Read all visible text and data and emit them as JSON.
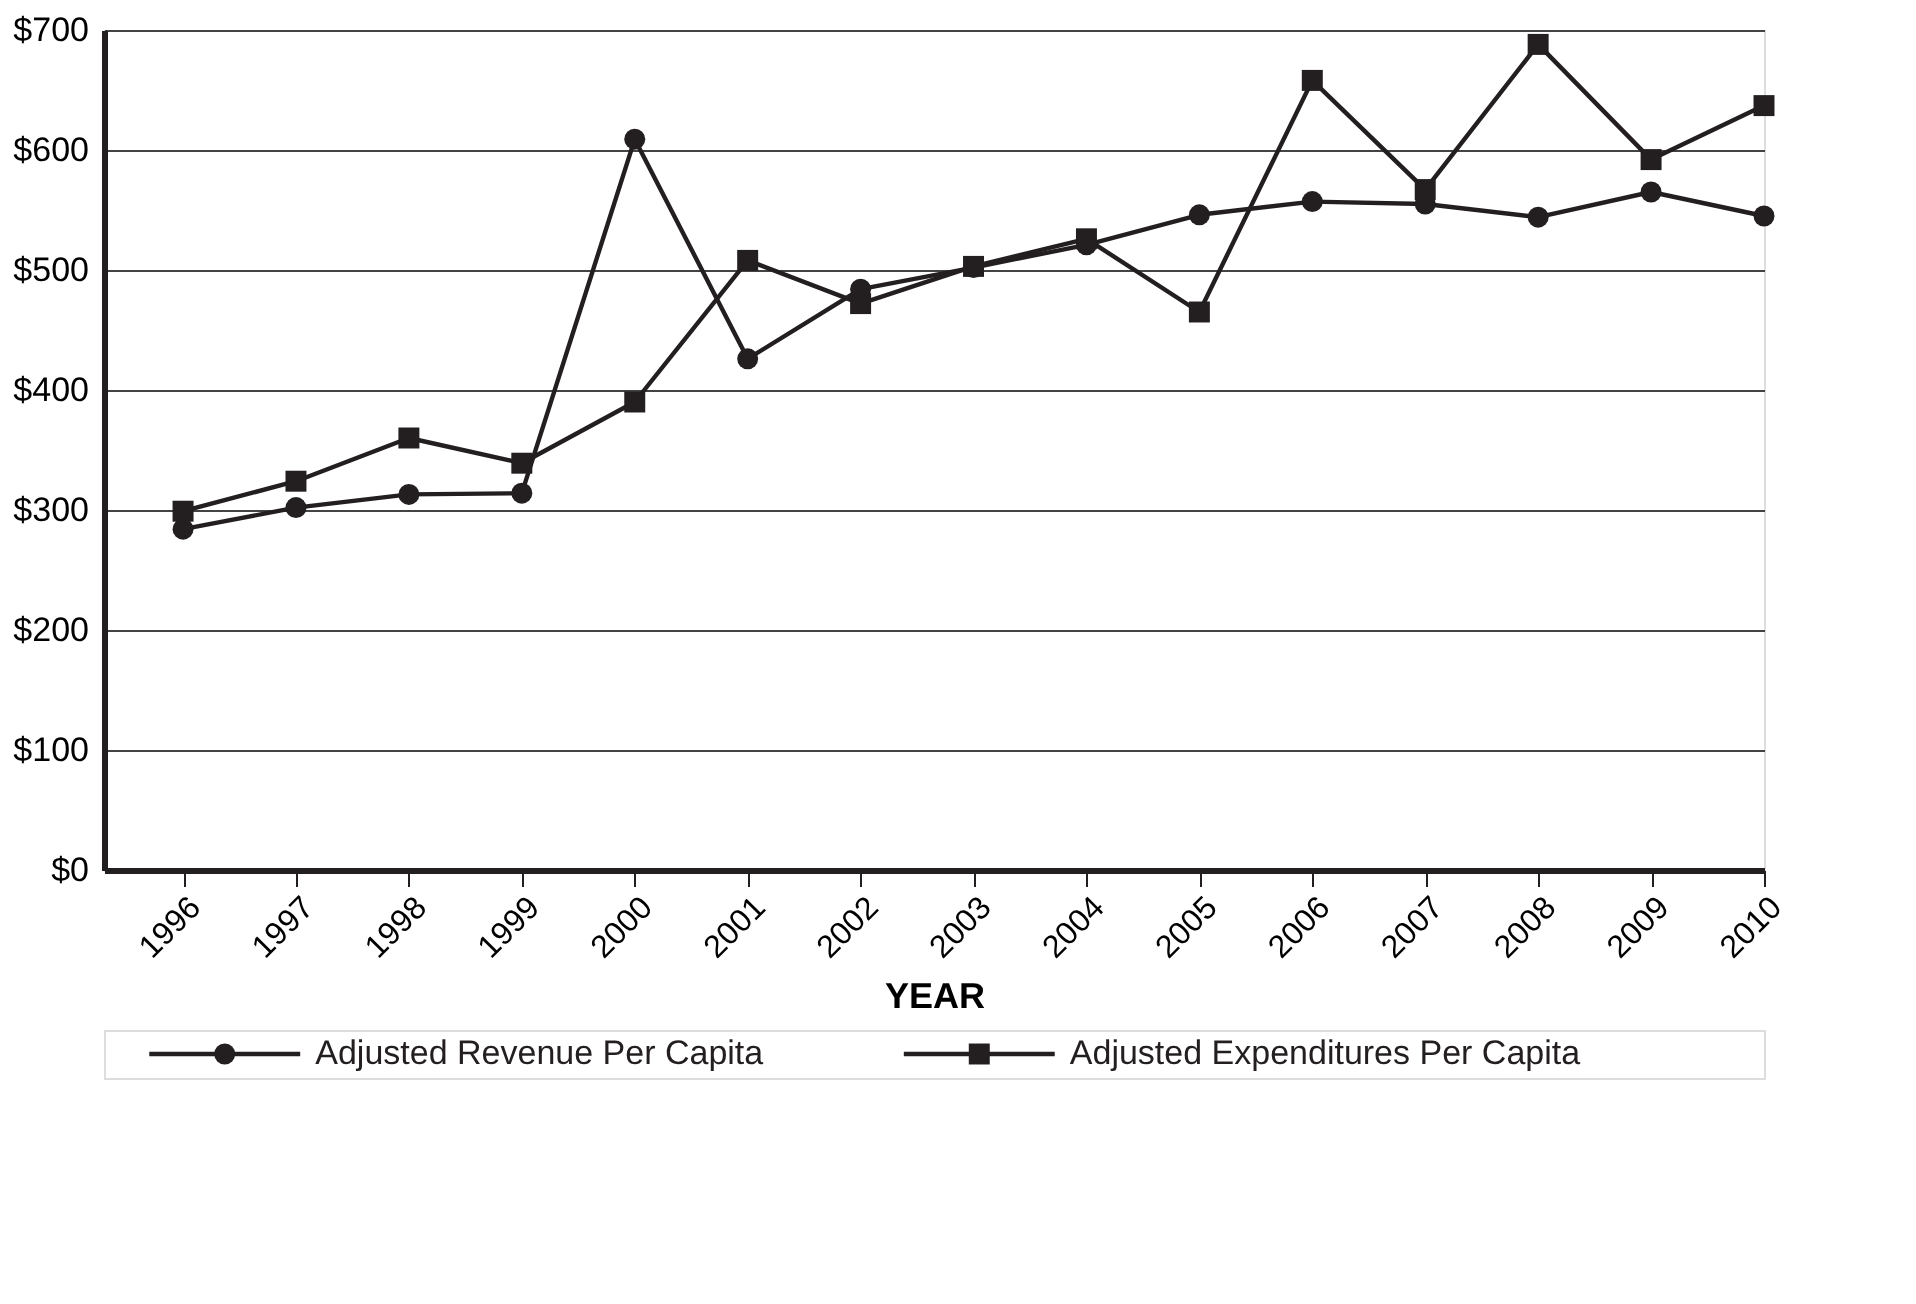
{
  "chart_data": {
    "type": "line",
    "xlabel": "YEAR",
    "categories": [
      "1996",
      "1997",
      "1998",
      "1999",
      "2000",
      "2001",
      "2002",
      "2003",
      "2004",
      "2005",
      "2006",
      "2007",
      "2008",
      "2009",
      "2010"
    ],
    "series": [
      {
        "name": "Adjusted Revenue Per Capita",
        "color": "#231f20",
        "marker": "circle",
        "values": [
          284,
          302,
          313,
          314,
          609,
          426,
          484,
          502,
          521,
          546,
          557,
          555,
          544,
          565,
          545
        ]
      },
      {
        "name": "Adjusted Expenditures Per Capita",
        "color": "#231f20",
        "marker": "square",
        "values": [
          299,
          324,
          360,
          339,
          390,
          508,
          472,
          503,
          526,
          465,
          658,
          567,
          688,
          592,
          637
        ]
      }
    ],
    "ylim": [
      0,
      700
    ],
    "yticks": [
      {
        "value": 0,
        "label": "$0"
      },
      {
        "value": 100,
        "label": "$100"
      },
      {
        "value": 200,
        "label": "$200"
      },
      {
        "value": 300,
        "label": "$300"
      },
      {
        "value": 400,
        "label": "$400"
      },
      {
        "value": 500,
        "label": "$500"
      },
      {
        "value": 600,
        "label": "$600"
      },
      {
        "value": 700,
        "label": "$700"
      }
    ],
    "grid": "y",
    "legend": "bottom",
    "line_style": "solid"
  }
}
